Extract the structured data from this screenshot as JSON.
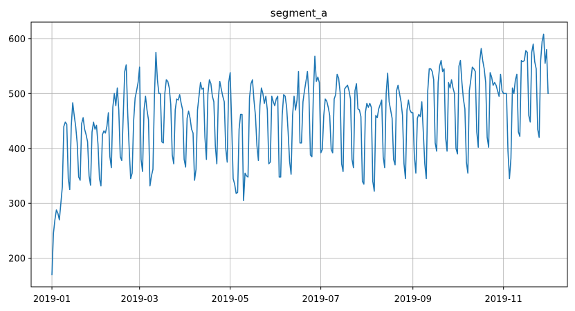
{
  "chart_data": {
    "type": "line",
    "title": "segment_a",
    "xlabel": "",
    "ylabel": "",
    "x_start": "2019-01-01",
    "x_end": "2019-11-30",
    "xlim": [
      "2018-12-18",
      "2019-12-14"
    ],
    "ylim": [
      148,
      630
    ],
    "grid": true,
    "x_ticks": [
      {
        "date": "2019-01-01",
        "label": "2019-01"
      },
      {
        "date": "2019-03-01",
        "label": "2019-03"
      },
      {
        "date": "2019-05-01",
        "label": "2019-05"
      },
      {
        "date": "2019-07-01",
        "label": "2019-07"
      },
      {
        "date": "2019-09-01",
        "label": "2019-09"
      },
      {
        "date": "2019-11-01",
        "label": "2019-11"
      }
    ],
    "y_ticks": [
      200,
      300,
      400,
      500,
      600
    ],
    "series": [
      {
        "color": "#1f77b4",
        "values": [
          170,
          245,
          270,
          288,
          282,
          270,
          300,
          330,
          440,
          448,
          444,
          345,
          325,
          440,
          483,
          460,
          440,
          410,
          348,
          342,
          445,
          456,
          435,
          425,
          412,
          350,
          333,
          430,
          448,
          435,
          442,
          408,
          345,
          332,
          425,
          432,
          428,
          440,
          465,
          385,
          365,
          475,
          500,
          478,
          510,
          470,
          385,
          378,
          460,
          540,
          552,
          465,
          400,
          345,
          355,
          450,
          492,
          505,
          520,
          548,
          380,
          358,
          470,
          495,
          470,
          452,
          332,
          350,
          362,
          495,
          575,
          525,
          500,
          500,
          412,
          410,
          500,
          525,
          522,
          510,
          480,
          388,
          372,
          470,
          490,
          488,
          498,
          482,
          470,
          380,
          366,
          455,
          468,
          455,
          435,
          428,
          342,
          362,
          470,
          495,
          520,
          508,
          510,
          420,
          380,
          500,
          525,
          518,
          495,
          485,
          405,
          372,
          490,
          522,
          508,
          495,
          485,
          400,
          375,
          520,
          538,
          445,
          345,
          335,
          318,
          320,
          435,
          462,
          462,
          305,
          355,
          350,
          348,
          492,
          518,
          525,
          488,
          460,
          405,
          378,
          478,
          510,
          500,
          482,
          495,
          470,
          372,
          375,
          495,
          485,
          478,
          490,
          495,
          348,
          348,
          460,
          498,
          495,
          475,
          430,
          376,
          353,
          460,
          495,
          470,
          488,
          540,
          410,
          410,
          485,
          505,
          522,
          540,
          498,
          388,
          385,
          500,
          568,
          522,
          530,
          520,
          392,
          398,
          460,
          490,
          486,
          475,
          460,
          398,
          392,
          490,
          498,
          535,
          528,
          502,
          372,
          358,
          508,
          512,
          515,
          505,
          490,
          380,
          365,
          505,
          518,
          472,
          470,
          458,
          340,
          335,
          465,
          482,
          475,
          482,
          475,
          340,
          322,
          460,
          456,
          472,
          480,
          488,
          385,
          365,
          500,
          537,
          485,
          470,
          455,
          380,
          370,
          505,
          515,
          500,
          485,
          460,
          372,
          345,
          470,
          488,
          470,
          465,
          465,
          385,
          355,
          455,
          462,
          458,
          485,
          430,
          372,
          345,
          505,
          545,
          545,
          540,
          525,
          410,
          395,
          520,
          550,
          560,
          540,
          545,
          420,
          395,
          520,
          510,
          525,
          510,
          500,
          400,
          390,
          550,
          560,
          520,
          490,
          472,
          375,
          355,
          505,
          525,
          548,
          545,
          540,
          430,
          402,
          560,
          582,
          560,
          545,
          520,
          420,
          402,
          538,
          530,
          515,
          520,
          515,
          505,
          495,
          535,
          505,
          500,
          500,
          500,
          395,
          345,
          382,
          510,
          500,
          525,
          535,
          430,
          422,
          560,
          558,
          560,
          578,
          575,
          460,
          448,
          575,
          590,
          558,
          545,
          435,
          420,
          560,
          595,
          608,
          555,
          580,
          500
        ]
      }
    ]
  }
}
